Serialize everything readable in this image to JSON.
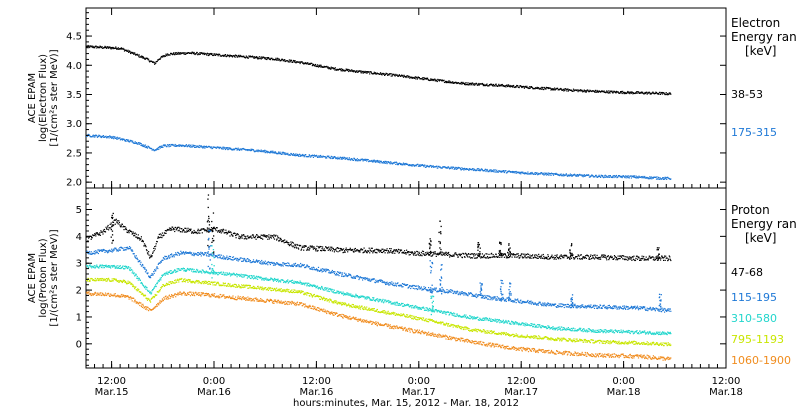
{
  "chart_data": [
    {
      "type": "scatter",
      "ylabel_lines": [
        "ACE EPAM",
        "log(Electron Flux)",
        "[1/(cm²s ster MeV)]"
      ],
      "ylim": [
        1.9,
        4.98
      ],
      "yticks": [
        2.0,
        2.5,
        3.0,
        3.5,
        4.0,
        4.5
      ],
      "ytick_labels": [
        "2.0",
        "2.5",
        "3.0",
        "3.5",
        "4.0",
        "4.5"
      ],
      "legend": {
        "title_lines": [
          "Electron",
          "Energy ran",
          "[keV]"
        ],
        "entries": [
          {
            "label": "38-53",
            "color": "#000000"
          },
          {
            "label": "175-315",
            "color": "#1e78d6"
          }
        ]
      },
      "series": [
        {
          "label": "38-53",
          "color": "#000000",
          "points": [
            [
              0.0,
              4.33
            ],
            [
              8.0,
              4.3
            ],
            [
              10.0,
              4.24
            ],
            [
              14.0,
              4.12
            ],
            [
              16.0,
              4.04
            ],
            [
              17.0,
              4.12
            ],
            [
              19.0,
              4.2
            ],
            [
              24.0,
              4.22
            ],
            [
              32.0,
              4.18
            ],
            [
              44.0,
              4.12
            ],
            [
              50.0,
              4.06
            ],
            [
              58.0,
              3.95
            ],
            [
              64.0,
              3.9
            ],
            [
              72.0,
              3.84
            ],
            [
              80.0,
              3.77
            ],
            [
              88.0,
              3.7
            ],
            [
              96.0,
              3.67
            ],
            [
              104.0,
              3.63
            ],
            [
              112.0,
              3.59
            ],
            [
              120.0,
              3.56
            ],
            [
              128.0,
              3.54
            ],
            [
              134.0,
              3.53
            ],
            [
              137.0,
              3.52
            ]
          ],
          "noise": 0.02
        },
        {
          "label": "175-315",
          "color": "#1e78d6",
          "points": [
            [
              0.0,
              2.81
            ],
            [
              6.0,
              2.78
            ],
            [
              12.0,
              2.68
            ],
            [
              16.0,
              2.56
            ],
            [
              18.0,
              2.63
            ],
            [
              22.0,
              2.64
            ],
            [
              30.0,
              2.6
            ],
            [
              40.0,
              2.55
            ],
            [
              50.0,
              2.47
            ],
            [
              60.0,
              2.42
            ],
            [
              70.0,
              2.35
            ],
            [
              80.0,
              2.28
            ],
            [
              90.0,
              2.23
            ],
            [
              100.0,
              2.18
            ],
            [
              110.0,
              2.14
            ],
            [
              120.0,
              2.11
            ],
            [
              128.0,
              2.1
            ],
            [
              137.0,
              2.07
            ]
          ],
          "noise": 0.02
        }
      ]
    },
    {
      "type": "scatter",
      "ylabel_lines": [
        "ACE EPAM",
        "log(Proton Flux)",
        "[1/(cm²s ster MeV)]"
      ],
      "ylim": [
        -0.9,
        5.8
      ],
      "yticks": [
        0,
        1,
        2,
        3,
        4,
        5
      ],
      "ytick_labels": [
        "0",
        "1",
        "2",
        "3",
        "4",
        "5"
      ],
      "xlabel": "hours:minutes, Mar. 15, 2012 - Mar. 18, 2012",
      "xlim": [
        0,
        150
      ],
      "xticks": [
        {
          "x": 6,
          "labels": [
            "12:00",
            "Mar.15"
          ]
        },
        {
          "x": 30,
          "labels": [
            "0:00",
            "Mar.16"
          ]
        },
        {
          "x": 54,
          "labels": [
            "12:00",
            "Mar.16"
          ]
        },
        {
          "x": 78,
          "labels": [
            "0:00",
            "Mar.17"
          ]
        },
        {
          "x": 102,
          "labels": [
            "12:00",
            "Mar.17"
          ]
        },
        {
          "x": 126,
          "labels": [
            "0:00",
            "Mar.18"
          ]
        },
        {
          "x": 150,
          "labels": [
            "12:00",
            "Mar.18"
          ]
        }
      ],
      "legend": {
        "title_lines": [
          "Proton",
          "Energy ran",
          "[keV]"
        ],
        "entries": [
          {
            "label": "47-68",
            "color": "#000000"
          },
          {
            "label": "115-195",
            "color": "#1e78d6"
          },
          {
            "label": "310-580",
            "color": "#22d6cc"
          },
          {
            "label": "795-1193",
            "color": "#c8e600"
          },
          {
            "label": "1060-1900",
            "color": "#f08c1e"
          }
        ]
      },
      "series": [
        {
          "label": "47-68",
          "color": "#000000",
          "points": [
            [
              0.0,
              3.9
            ],
            [
              4.0,
              4.2
            ],
            [
              7.0,
              4.6
            ],
            [
              9.0,
              4.3
            ],
            [
              13.0,
              3.9
            ],
            [
              15.0,
              3.2
            ],
            [
              17.0,
              4.0
            ],
            [
              20.0,
              4.3
            ],
            [
              26.0,
              4.2
            ],
            [
              30.0,
              4.3
            ],
            [
              36.0,
              4.0
            ],
            [
              44.0,
              4.0
            ],
            [
              50.0,
              3.6
            ],
            [
              56.0,
              3.55
            ],
            [
              60.0,
              3.5
            ],
            [
              70.0,
              3.5
            ],
            [
              76.0,
              3.4
            ],
            [
              84.0,
              3.35
            ],
            [
              90.0,
              3.3
            ],
            [
              100.0,
              3.3
            ],
            [
              110.0,
              3.25
            ],
            [
              120.0,
              3.25
            ],
            [
              130.0,
              3.2
            ],
            [
              137.0,
              3.2
            ]
          ],
          "noise": 0.09
        },
        {
          "label": "115-195",
          "color": "#1e78d6",
          "points": [
            [
              0.0,
              3.4
            ],
            [
              6.0,
              3.5
            ],
            [
              10.0,
              3.6
            ],
            [
              15.0,
              2.5
            ],
            [
              18.0,
              3.2
            ],
            [
              22.0,
              3.4
            ],
            [
              28.0,
              3.35
            ],
            [
              34.0,
              3.2
            ],
            [
              44.0,
              3.0
            ],
            [
              50.0,
              2.95
            ],
            [
              60.0,
              2.6
            ],
            [
              70.0,
              2.3
            ],
            [
              78.0,
              2.1
            ],
            [
              86.0,
              1.95
            ],
            [
              94.0,
              1.75
            ],
            [
              102.0,
              1.6
            ],
            [
              110.0,
              1.45
            ],
            [
              120.0,
              1.4
            ],
            [
              130.0,
              1.35
            ],
            [
              137.0,
              1.25
            ]
          ],
          "noise": 0.07
        },
        {
          "label": "310-580",
          "color": "#22d6cc",
          "points": [
            [
              0.0,
              2.9
            ],
            [
              6.0,
              2.9
            ],
            [
              10.0,
              2.85
            ],
            [
              15.0,
              1.9
            ],
            [
              18.0,
              2.6
            ],
            [
              22.0,
              2.8
            ],
            [
              28.0,
              2.7
            ],
            [
              34.0,
              2.6
            ],
            [
              44.0,
              2.4
            ],
            [
              50.0,
              2.3
            ],
            [
              60.0,
              1.9
            ],
            [
              70.0,
              1.6
            ],
            [
              80.0,
              1.3
            ],
            [
              90.0,
              1.0
            ],
            [
              100.0,
              0.8
            ],
            [
              110.0,
              0.6
            ],
            [
              120.0,
              0.5
            ],
            [
              130.0,
              0.45
            ],
            [
              137.0,
              0.4
            ]
          ],
          "noise": 0.06
        },
        {
          "label": "795-1193",
          "color": "#c8e600",
          "points": [
            [
              0.0,
              2.4
            ],
            [
              6.0,
              2.4
            ],
            [
              10.0,
              2.3
            ],
            [
              15.0,
              1.6
            ],
            [
              18.0,
              2.2
            ],
            [
              22.0,
              2.4
            ],
            [
              28.0,
              2.3
            ],
            [
              34.0,
              2.2
            ],
            [
              44.0,
              2.05
            ],
            [
              50.0,
              1.95
            ],
            [
              60.0,
              1.5
            ],
            [
              70.0,
              1.2
            ],
            [
              80.0,
              0.9
            ],
            [
              90.0,
              0.55
            ],
            [
              100.0,
              0.35
            ],
            [
              110.0,
              0.2
            ],
            [
              120.0,
              0.1
            ],
            [
              130.0,
              0.05
            ],
            [
              137.0,
              0.0
            ]
          ],
          "noise": 0.06
        },
        {
          "label": "1060-1900",
          "color": "#f08c1e",
          "points": [
            [
              0.0,
              1.9
            ],
            [
              6.0,
              1.85
            ],
            [
              10.0,
              1.75
            ],
            [
              15.0,
              1.25
            ],
            [
              18.0,
              1.7
            ],
            [
              22.0,
              1.9
            ],
            [
              28.0,
              1.85
            ],
            [
              34.0,
              1.75
            ],
            [
              44.0,
              1.6
            ],
            [
              50.0,
              1.5
            ],
            [
              60.0,
              1.05
            ],
            [
              70.0,
              0.7
            ],
            [
              80.0,
              0.4
            ],
            [
              90.0,
              0.1
            ],
            [
              100.0,
              -0.15
            ],
            [
              110.0,
              -0.3
            ],
            [
              120.0,
              -0.4
            ],
            [
              130.0,
              -0.45
            ],
            [
              137.0,
              -0.55
            ]
          ],
          "noise": 0.07
        }
      ],
      "spikes": [
        {
          "x": 6.0,
          "ymin": 3.6,
          "ymax": 4.9,
          "color": "#000000"
        },
        {
          "x": 28.5,
          "ymin": 3.5,
          "ymax": 5.6,
          "color": "#000000"
        },
        {
          "x": 29.5,
          "ymin": 3.4,
          "ymax": 5.1,
          "color": "#000000"
        },
        {
          "x": 28.8,
          "ymin": 2.6,
          "ymax": 4.4,
          "color": "#1e78d6"
        },
        {
          "x": 29.6,
          "ymin": 2.3,
          "ymax": 3.7,
          "color": "#22d6cc"
        },
        {
          "x": 80.5,
          "ymin": 3.3,
          "ymax": 4.0,
          "color": "#000000"
        },
        {
          "x": 82.8,
          "ymin": 3.3,
          "ymax": 4.6,
          "color": "#000000"
        },
        {
          "x": 80.8,
          "ymin": 1.9,
          "ymax": 3.2,
          "color": "#1e78d6"
        },
        {
          "x": 83.0,
          "ymin": 1.8,
          "ymax": 3.0,
          "color": "#1e78d6"
        },
        {
          "x": 81.0,
          "ymin": 1.1,
          "ymax": 1.8,
          "color": "#22d6cc"
        },
        {
          "x": 92.0,
          "ymin": 3.3,
          "ymax": 3.8,
          "color": "#000000"
        },
        {
          "x": 97.0,
          "ymin": 3.3,
          "ymax": 3.9,
          "color": "#000000"
        },
        {
          "x": 99.0,
          "ymin": 3.3,
          "ymax": 3.8,
          "color": "#000000"
        },
        {
          "x": 92.5,
          "ymin": 1.7,
          "ymax": 2.3,
          "color": "#1e78d6"
        },
        {
          "x": 97.3,
          "ymin": 1.6,
          "ymax": 2.4,
          "color": "#1e78d6"
        },
        {
          "x": 99.2,
          "ymin": 1.6,
          "ymax": 2.3,
          "color": "#1e78d6"
        },
        {
          "x": 113.5,
          "ymin": 3.3,
          "ymax": 3.8,
          "color": "#000000"
        },
        {
          "x": 113.7,
          "ymin": 1.4,
          "ymax": 1.9,
          "color": "#1e78d6"
        },
        {
          "x": 134.0,
          "ymin": 3.2,
          "ymax": 3.6,
          "color": "#000000"
        },
        {
          "x": 134.5,
          "ymin": 1.3,
          "ymax": 2.1,
          "color": "#1e78d6"
        }
      ]
    }
  ]
}
